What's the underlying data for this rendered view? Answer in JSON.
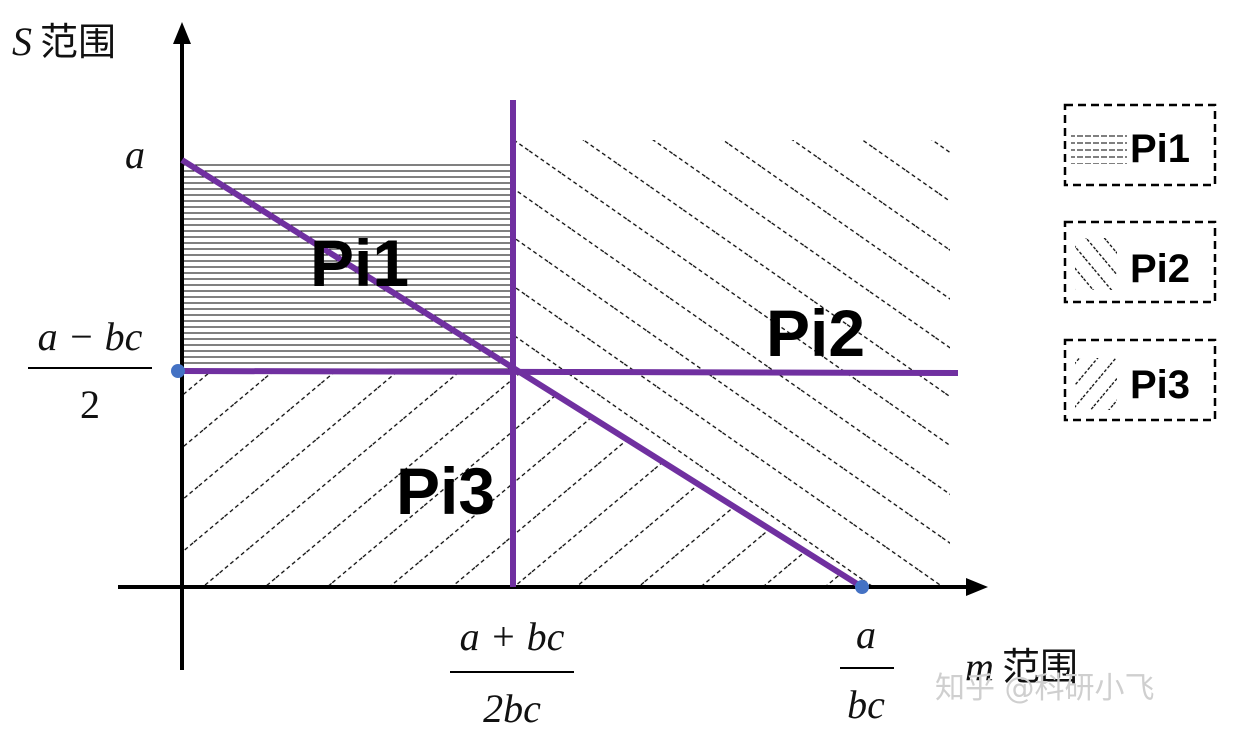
{
  "axes": {
    "y_label_var": "S",
    "y_label_text": "范围",
    "x_label_var": "m",
    "x_label_text": "范围"
  },
  "y_ticks": {
    "top": "a",
    "mid_numerator": "a − bc",
    "mid_denominator": "2"
  },
  "x_ticks": {
    "mid_numerator": "a + bc",
    "mid_denominator": "2bc",
    "right_numerator": "a",
    "right_denominator": "bc"
  },
  "regions": {
    "pi1": "Pi1",
    "pi2": "Pi2",
    "pi3": "Pi3"
  },
  "legend": [
    {
      "label": "Pi1",
      "pattern": "horizontal"
    },
    {
      "label": "Pi2",
      "pattern": "diagonal-down"
    },
    {
      "label": "Pi3",
      "pattern": "diagonal-up"
    }
  ],
  "colors": {
    "boundary": "#7030a0",
    "point": "#4472c4",
    "axis": "#000000",
    "hatch": "#000000"
  },
  "watermark": "知乎 @科研小飞"
}
